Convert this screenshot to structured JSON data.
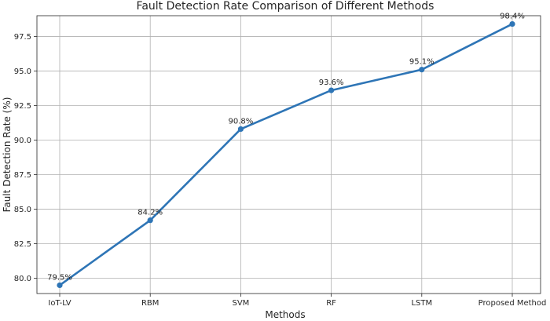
{
  "chart_data": {
    "type": "line",
    "title": "Fault Detection Rate Comparison of Different Methods",
    "xlabel": "Methods",
    "ylabel": "Fault Detection Rate (%)",
    "categories": [
      "IoT-LV",
      "RBM",
      "SVM",
      "RF",
      "LSTM",
      "Proposed Method"
    ],
    "series": [
      {
        "values": [
          79.5,
          84.2,
          90.8,
          93.6,
          95.1,
          98.4
        ],
        "labels": [
          "79.5%",
          "84.2%",
          "90.8%",
          "93.6%",
          "95.1%",
          "98.4%"
        ],
        "color": "#2e75b6"
      }
    ],
    "y_ticks": [
      "80.0",
      "82.5",
      "85.0",
      "87.5",
      "90.0",
      "92.5",
      "95.0",
      "97.5"
    ],
    "y_tick_values": [
      80.0,
      82.5,
      85.0,
      87.5,
      90.0,
      92.5,
      95.0,
      97.5
    ],
    "ylim": [
      78.9,
      99.0
    ],
    "grid": true,
    "marker": "circle"
  }
}
